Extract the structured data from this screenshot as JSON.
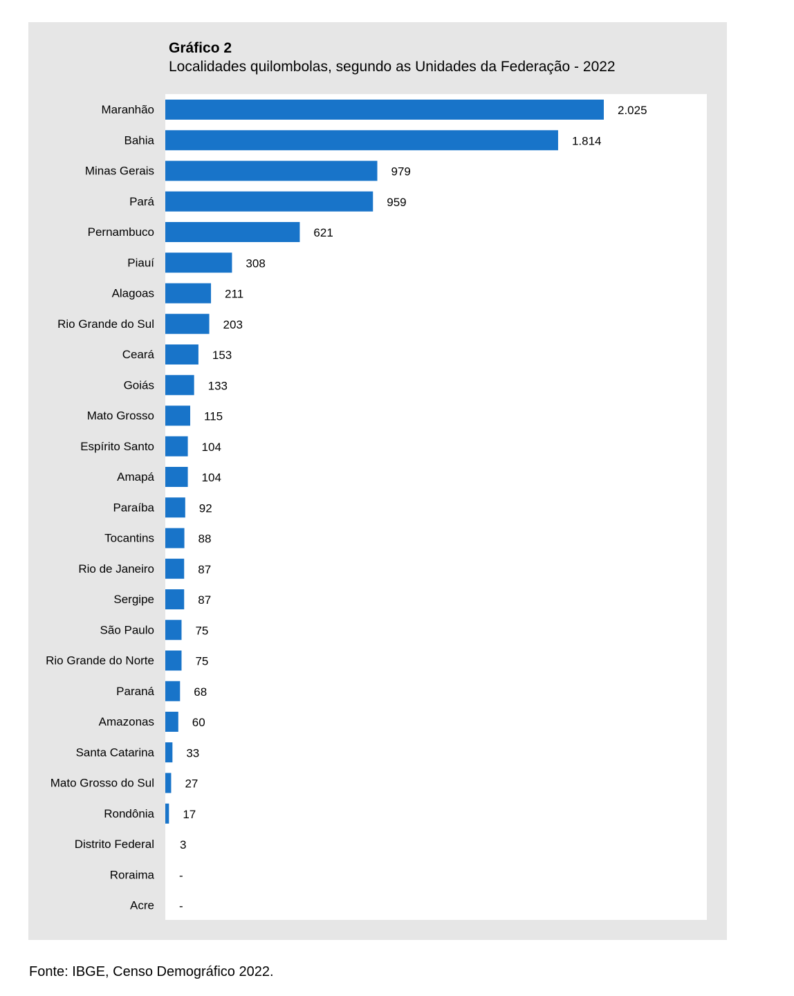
{
  "chart_data": {
    "type": "bar",
    "orientation": "horizontal",
    "title": "Gráfico 2",
    "subtitle": "Localidades quilombolas, segundo as Unidades da Federação - 2022",
    "categories": [
      "Maranhão",
      "Bahia",
      "Minas Gerais",
      "Pará",
      "Pernambuco",
      "Piauí",
      "Alagoas",
      "Rio Grande do Sul",
      "Ceará",
      "Goiás",
      "Mato Grosso",
      "Espírito Santo",
      "Amapá",
      "Paraíba",
      "Tocantins",
      "Rio de Janeiro",
      "Sergipe",
      "São Paulo",
      "Rio Grande do Norte",
      "Paraná",
      "Amazonas",
      "Santa Catarina",
      "Mato Grosso do Sul",
      "Rondônia",
      "Distrito Federal",
      "Roraima",
      "Acre"
    ],
    "values": [
      2025,
      1814,
      979,
      959,
      621,
      308,
      211,
      203,
      153,
      133,
      115,
      104,
      104,
      92,
      88,
      87,
      87,
      75,
      75,
      68,
      60,
      33,
      27,
      17,
      3,
      0,
      0
    ],
    "value_labels": [
      "2.025",
      "1.814",
      "979",
      "959",
      "621",
      "308",
      "211",
      "203",
      "153",
      "133",
      "115",
      "104",
      "104",
      "92",
      "88",
      "87",
      "87",
      "75",
      "75",
      "68",
      "60",
      "33",
      "27",
      "17",
      "3",
      "-",
      "-"
    ],
    "xlim": [
      0,
      2500
    ],
    "bar_color": "#1874c9",
    "grid": false,
    "legend": "none"
  },
  "source": "Fonte: IBGE, Censo Demográfico 2022."
}
